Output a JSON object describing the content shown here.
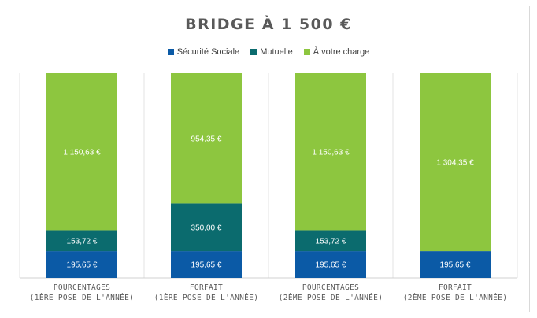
{
  "chart_data": {
    "type": "bar",
    "stacked": true,
    "title": "BRIDGE À 1 500 €",
    "categories": [
      [
        "POURCENTAGES",
        "(1ÈRE POSE DE L'ANNÉE)"
      ],
      [
        "FORFAIT",
        "(1ÈRE POSE DE L'ANNÉE)"
      ],
      [
        "POURCENTAGES",
        "(2ÈME POSE DE L'ANNÉE)"
      ],
      [
        "FORFAIT",
        "(2ÈME POSE DE L'ANNÉE)"
      ]
    ],
    "series": [
      {
        "name": "Sécurité Sociale",
        "color": "#0b5aa6",
        "values": [
          195.65,
          195.65,
          195.65,
          195.65
        ],
        "labels": [
          "195,65 €",
          "195,65 €",
          "195,65 €",
          "195,65 €"
        ]
      },
      {
        "name": "Mutuelle",
        "color": "#0b6b6e",
        "values": [
          153.72,
          350.0,
          153.72,
          0
        ],
        "labels": [
          "153,72 €",
          "350,00 €",
          "153,72 €",
          ""
        ]
      },
      {
        "name": "À votre charge",
        "color": "#8dc63f",
        "values": [
          1150.63,
          954.35,
          1150.63,
          1304.35
        ],
        "labels": [
          "1 150,63 €",
          "954,35 €",
          "1 150,63 €",
          "1 304,35 €"
        ]
      }
    ],
    "ylim": [
      0,
      1500
    ],
    "legend_position": "top",
    "grid": false
  }
}
